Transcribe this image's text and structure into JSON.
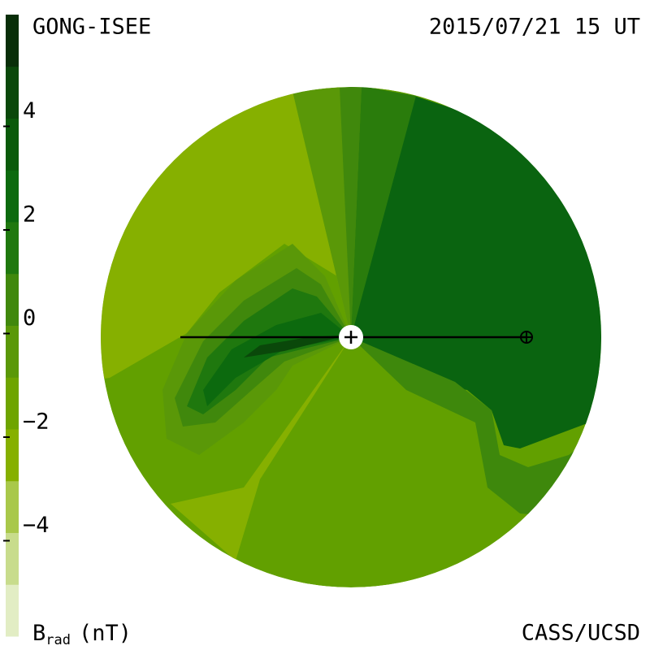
{
  "chart_data": {
    "type": "colormap",
    "title": "GONG-ISEE",
    "subtitle": "2015/07/21 15 UT",
    "credit": "CASS/UCSD",
    "colorbar_label": {
      "symbol": "B",
      "subscript": "rad",
      "unit": "(nT)"
    },
    "clim": [
      -6,
      6
    ],
    "cticks": [
      4,
      2,
      0,
      {
        "value": -2,
        "label": "−2"
      },
      {
        "value": -4,
        "label": "−4"
      }
    ],
    "colors": [
      "#e2edc4",
      "#c8dc8c",
      "#a9c84a",
      "#86b000",
      "#6ea400",
      "#5a9808",
      "#40880c",
      "#1f780e",
      "#0c6a0e",
      "#0a5a0a",
      "#0a480a",
      "#082e08"
    ]
  }
}
